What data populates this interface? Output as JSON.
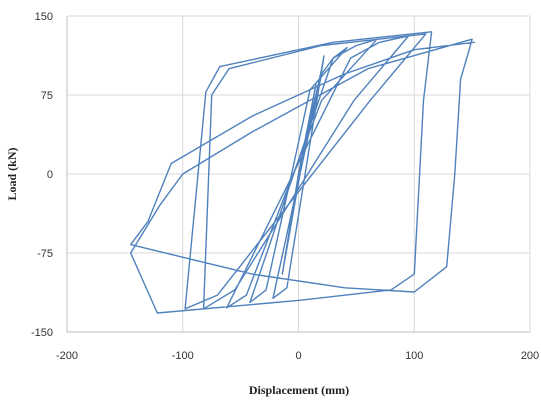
{
  "chart_data": {
    "type": "line",
    "title": "",
    "xlabel": "Displacement (mm)",
    "ylabel": "Load (kN)",
    "xlim": [
      -200,
      200
    ],
    "ylim": [
      -150,
      150
    ],
    "x_ticks": [
      "-200",
      "-100",
      "0",
      "100",
      "200"
    ],
    "y_ticks": [
      "150",
      "75",
      "0",
      "-75",
      "-150"
    ],
    "grid": true,
    "legend": "none",
    "series_color": "#4f81bd",
    "series": [
      {
        "values": [
          {
            "x": 0,
            "y": 0
          },
          {
            "x": 15,
            "y": 85
          },
          {
            "x": -14,
            "y": -95
          },
          {
            "x": 0,
            "y": 0
          },
          {
            "x": 20,
            "y": 100
          },
          {
            "x": 22,
            "y": 112
          },
          {
            "x": -10,
            "y": -108
          },
          {
            "x": -22,
            "y": -118
          },
          {
            "x": 20,
            "y": 95
          },
          {
            "x": 30,
            "y": 110
          },
          {
            "x": 42,
            "y": 120
          },
          {
            "x": 10,
            "y": 80
          },
          {
            "x": -28,
            "y": -110
          },
          {
            "x": -42,
            "y": -122
          },
          {
            "x": 30,
            "y": 110
          },
          {
            "x": 50,
            "y": 122
          },
          {
            "x": 68,
            "y": 128
          },
          {
            "x": 20,
            "y": 70
          },
          {
            "x": -45,
            "y": -115
          },
          {
            "x": -62,
            "y": -127
          },
          {
            "x": 45,
            "y": 110
          },
          {
            "x": 70,
            "y": 125
          },
          {
            "x": 95,
            "y": 131
          },
          {
            "x": 48,
            "y": 70
          },
          {
            "x": -55,
            "y": -110
          },
          {
            "x": -82,
            "y": -128
          },
          {
            "x": -75,
            "y": 75
          },
          {
            "x": -60,
            "y": 100
          },
          {
            "x": 20,
            "y": 122
          },
          {
            "x": 110,
            "y": 133
          },
          {
            "x": 62,
            "y": 70
          },
          {
            "x": -70,
            "y": -115
          },
          {
            "x": -98,
            "y": -128
          },
          {
            "x": -80,
            "y": 78
          },
          {
            "x": -68,
            "y": 102
          },
          {
            "x": 30,
            "y": 125
          },
          {
            "x": 115,
            "y": 135
          },
          {
            "x": 108,
            "y": 70
          },
          {
            "x": 100,
            "y": -95
          },
          {
            "x": 80,
            "y": -110
          },
          {
            "x": 0,
            "y": -120
          },
          {
            "x": -122,
            "y": -132
          },
          {
            "x": -145,
            "y": -75
          },
          {
            "x": -120,
            "y": -30
          },
          {
            "x": -100,
            "y": 0
          },
          {
            "x": -40,
            "y": 40
          },
          {
            "x": 60,
            "y": 100
          },
          {
            "x": 150,
            "y": 128
          },
          {
            "x": 148,
            "y": 120
          },
          {
            "x": 140,
            "y": 90
          },
          {
            "x": 135,
            "y": 0
          },
          {
            "x": 128,
            "y": -88
          },
          {
            "x": 100,
            "y": -112
          },
          {
            "x": 40,
            "y": -108
          },
          {
            "x": -40,
            "y": -95
          },
          {
            "x": -145,
            "y": -67
          },
          {
            "x": -130,
            "y": -45
          },
          {
            "x": -110,
            "y": 10
          },
          {
            "x": -40,
            "y": 55
          },
          {
            "x": 40,
            "y": 95
          },
          {
            "x": 100,
            "y": 118
          },
          {
            "x": 152,
            "y": 125
          }
        ]
      }
    ]
  }
}
